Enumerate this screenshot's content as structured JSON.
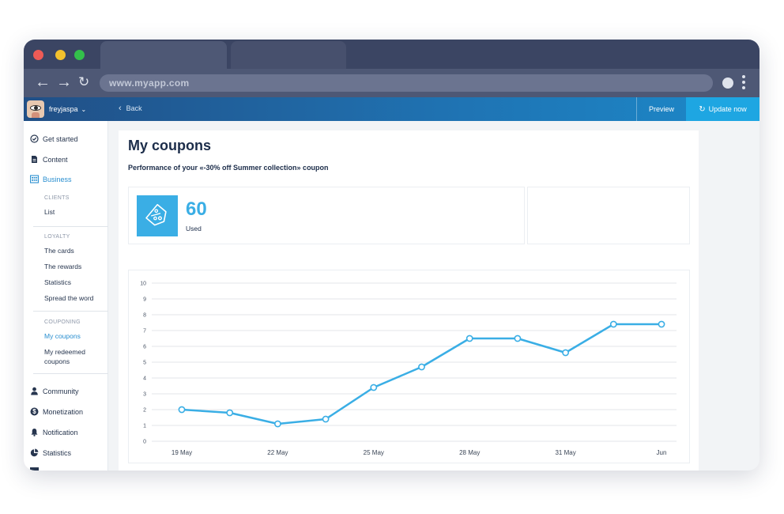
{
  "browser": {
    "url": "www.myapp.com",
    "dot_colors": [
      "#ee5b56",
      "#f3c12d",
      "#33c04b"
    ]
  },
  "appbar": {
    "username": "freyjaspa",
    "back_label": "Back",
    "preview_label": "Preview",
    "update_label": "Update now"
  },
  "sidebar": {
    "get_started": "Get started",
    "content": "Content",
    "business": "Business",
    "clients_heading": "CLIENTS",
    "list": "List",
    "loyalty_heading": "LOYALTY",
    "the_cards": "The cards",
    "the_rewards": "The rewards",
    "statistics_sub": "Statistics",
    "spread_the_word": "Spread the word",
    "couponing_heading": "COUPONING",
    "my_coupons": "My coupons",
    "my_redeemed_coupons_1": "My redeemed",
    "my_redeemed_coupons_2": "coupons",
    "community": "Community",
    "monetization": "Monetization",
    "notification": "Notification",
    "statistics": "Statistics"
  },
  "main": {
    "title": "My coupons",
    "subtitle": "Performance of your «-30% off Summer collection» coupon",
    "stat_value": "60",
    "stat_label": "Used"
  },
  "chart_data": {
    "type": "line",
    "x_labels": [
      "19 May",
      "22 May",
      "25 May",
      "28 May",
      "31 May",
      "Jun"
    ],
    "x_label_positions": [
      0,
      2,
      4,
      6,
      8,
      10
    ],
    "values": [
      2.0,
      1.8,
      1.1,
      1.4,
      3.4,
      4.7,
      6.5,
      6.5,
      5.6,
      7.4,
      7.4
    ],
    "ylim": [
      0,
      10
    ],
    "yticks": [
      0,
      1,
      2,
      3,
      4,
      5,
      6,
      7,
      8,
      9,
      10
    ],
    "grid": true,
    "color": "#3aaee5"
  }
}
